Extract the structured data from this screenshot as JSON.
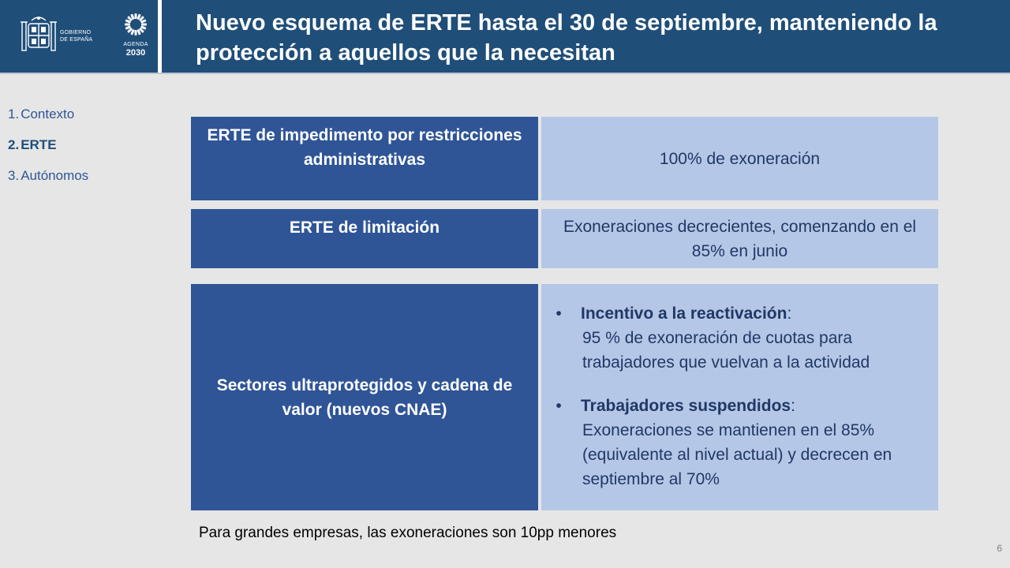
{
  "header": {
    "title": "Nuevo esquema de ERTE hasta el 30 de septiembre, manteniendo la protección a aquellos que la necesitan",
    "gov_logo_line1": "GOBIERNO",
    "gov_logo_line2": "DE ESPAÑA",
    "agenda_label": "AGENDA",
    "agenda_year": "2030"
  },
  "nav": {
    "items": [
      {
        "num": "1.",
        "label": "Contexto"
      },
      {
        "num": "2.",
        "label": "ERTE"
      },
      {
        "num": "3.",
        "label": "Autónomos"
      }
    ]
  },
  "rows": [
    {
      "left": "ERTE de impedimento por restricciones administrativas",
      "right": "100% de exoneración"
    },
    {
      "left": "ERTE de limitación",
      "right": "Exoneraciones decrecientes, comenzando en el 85% en junio"
    },
    {
      "left": "Sectores ultraprotegidos y cadena de valor (nuevos CNAE)",
      "bullets": [
        {
          "head": "Incentivo a la reactivación",
          "body": "95 % de exoneración de cuotas para trabajadores que vuelvan a la actividad"
        },
        {
          "head": "Trabajadores suspendidos",
          "body": "Exoneraciones se mantienen en el 85% (equivalente al nivel actual) y decrecen en septiembre al 70%"
        }
      ]
    }
  ],
  "footnote": "Para grandes empresas, las exoneraciones son 10pp menores",
  "page_number": "6",
  "colors": {
    "header_bg": "#1f4e79",
    "dark_cell": "#2f5597",
    "light_cell": "#b4c7e7",
    "nav_text": "#1f4e79"
  }
}
